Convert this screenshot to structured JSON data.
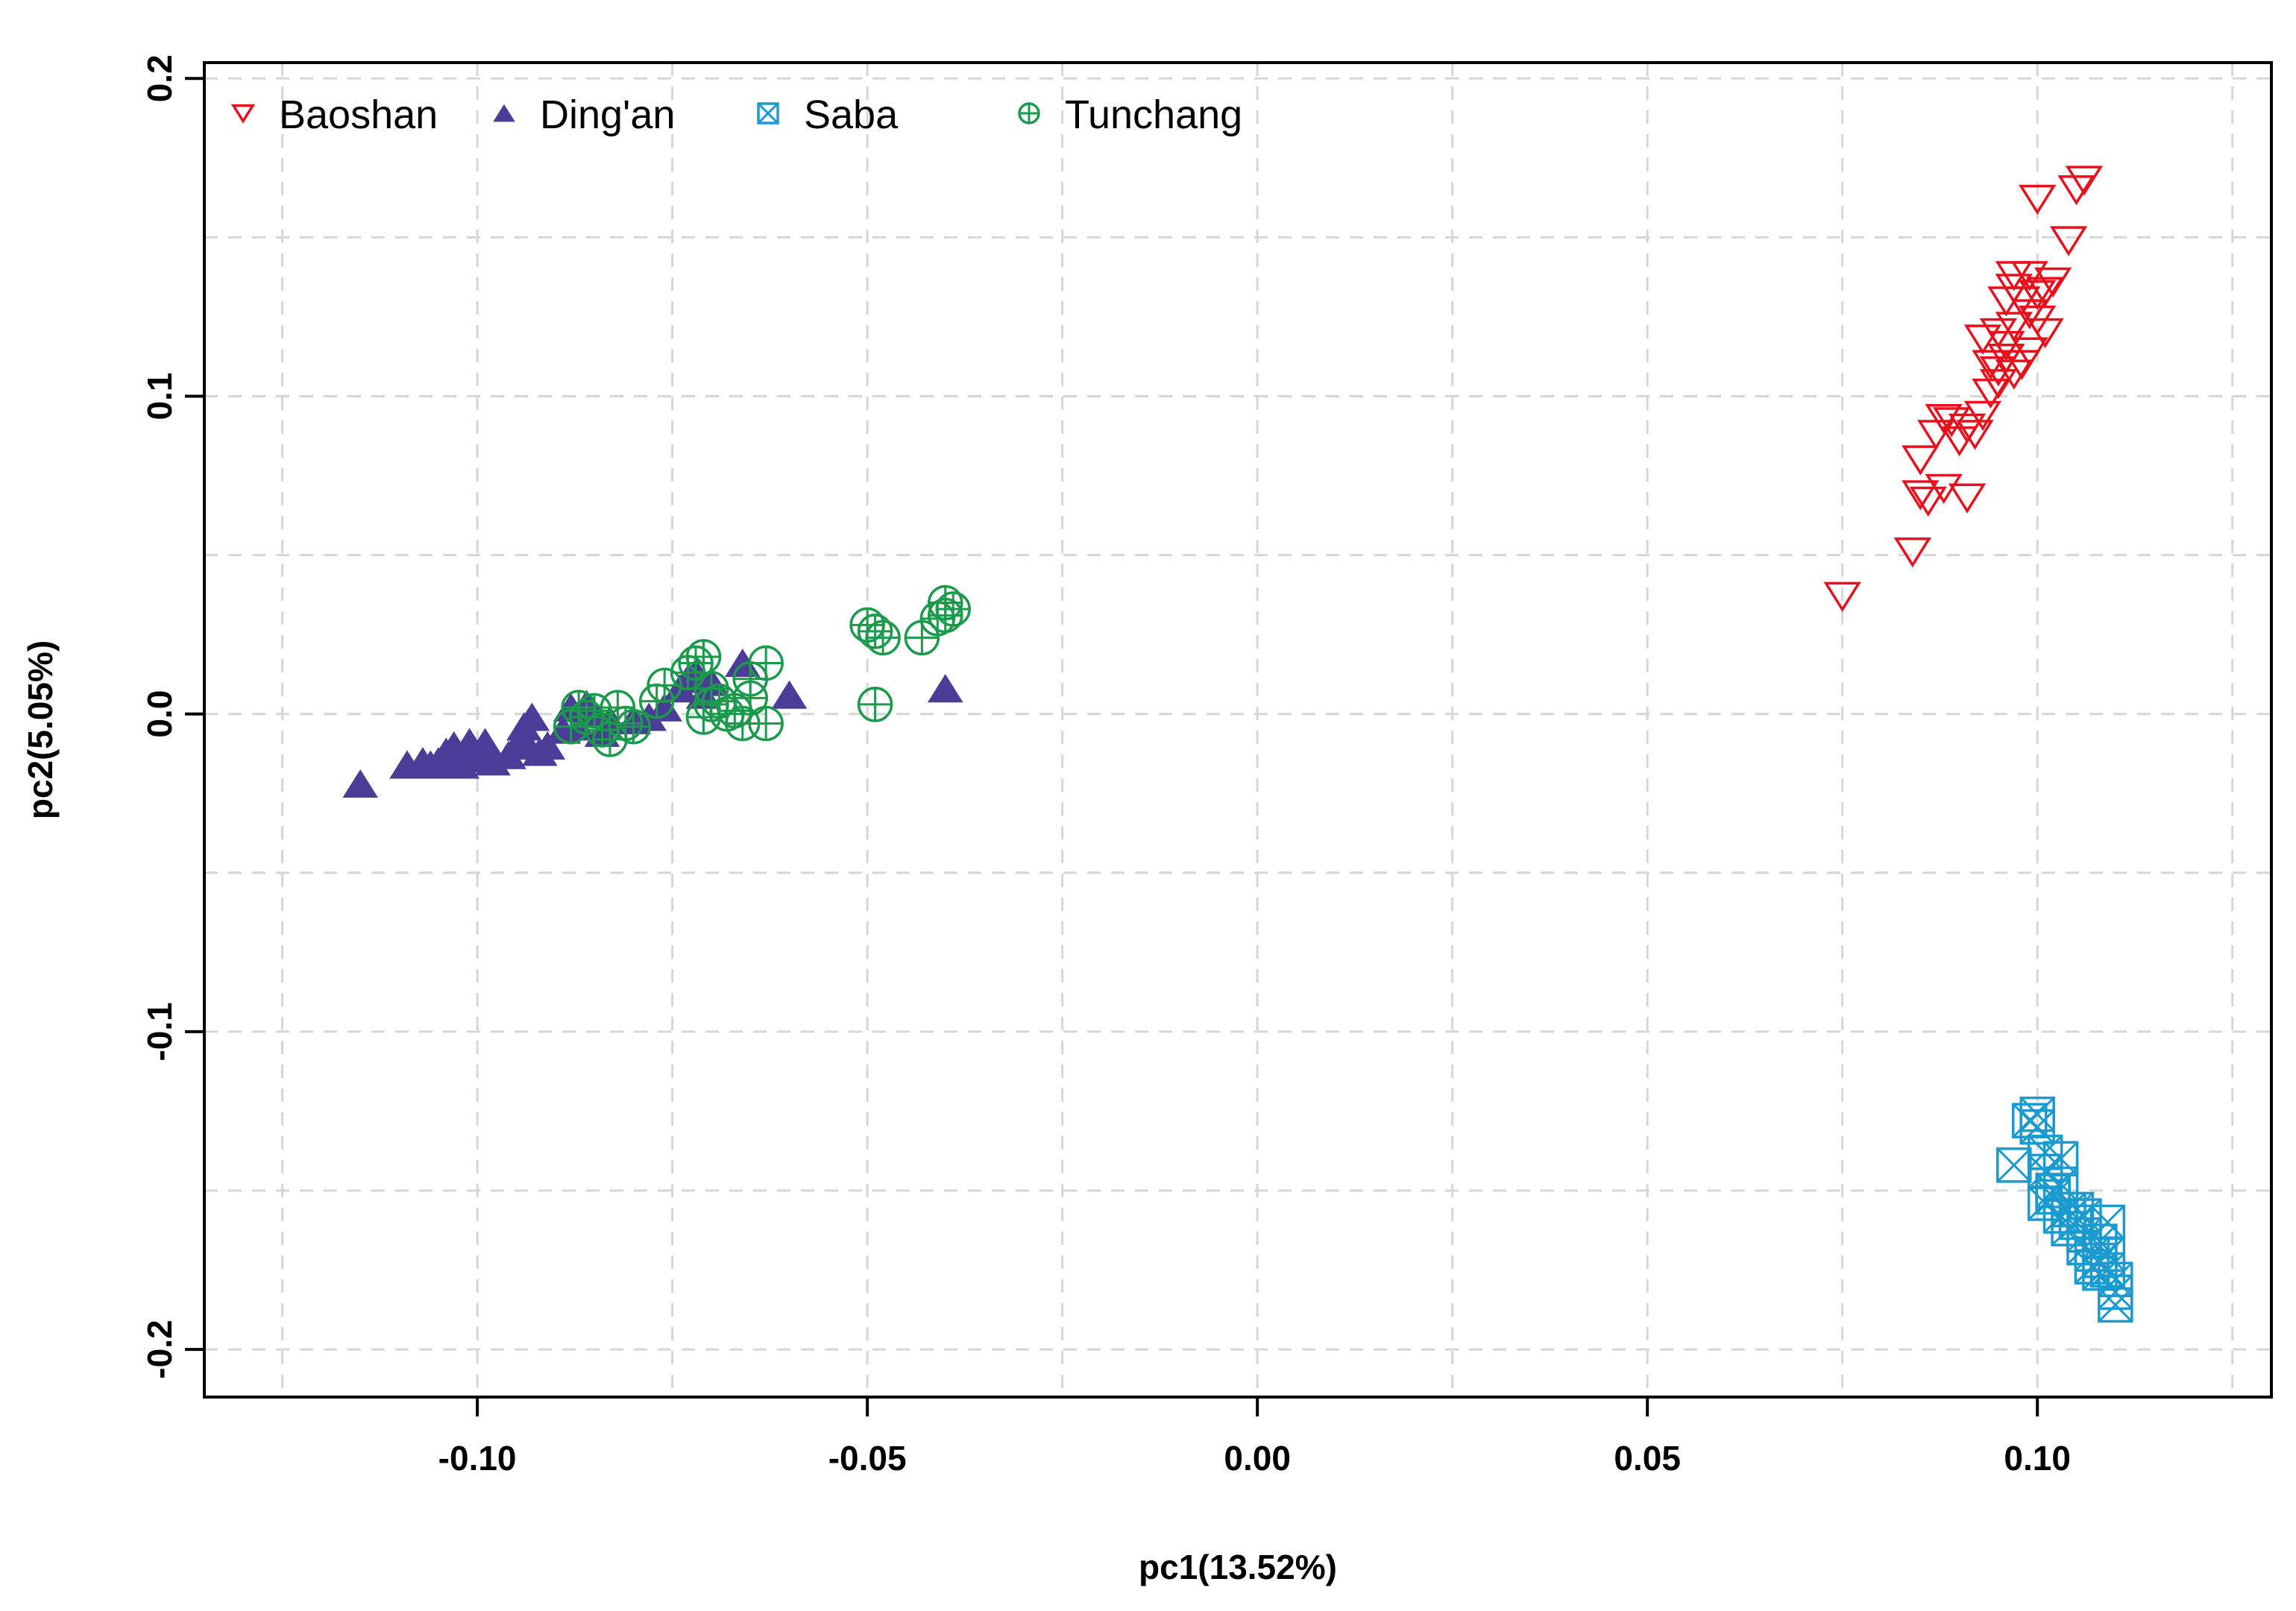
{
  "chart_data": {
    "type": "scatter",
    "title": "",
    "xlabel": "pc1(13.52%)",
    "ylabel": "pc2(5.05%)",
    "xlim": [
      -0.135,
      0.13
    ],
    "ylim": [
      -0.215,
      0.205
    ],
    "xticks": [
      -0.1,
      -0.05,
      0.0,
      0.05,
      0.1
    ],
    "xtick_labels": [
      "-0.10",
      "-0.05",
      "0.00",
      "0.05",
      "0.10"
    ],
    "yticks": [
      -0.2,
      -0.1,
      0.0,
      0.1,
      0.2
    ],
    "ytick_labels": [
      "-0.2",
      "-0.1",
      "0.0",
      "0.1",
      "0.2"
    ],
    "grid": true,
    "legend": {
      "position": "top-left",
      "orientation": "horizontal"
    },
    "series": [
      {
        "name": "Baoshan",
        "marker": "triangle-down-open",
        "color": "#e8101c",
        "points": [
          [
            0.075,
            0.037
          ],
          [
            0.084,
            0.051
          ],
          [
            0.085,
            0.069
          ],
          [
            0.086,
            0.067
          ],
          [
            0.088,
            0.071
          ],
          [
            0.085,
            0.08
          ],
          [
            0.087,
            0.088
          ],
          [
            0.089,
            0.092
          ],
          [
            0.09,
            0.086
          ],
          [
            0.091,
            0.09
          ],
          [
            0.092,
            0.088
          ],
          [
            0.088,
            0.093
          ],
          [
            0.091,
            0.068
          ],
          [
            0.093,
            0.094
          ],
          [
            0.094,
            0.101
          ],
          [
            0.095,
            0.104
          ],
          [
            0.095,
            0.108
          ],
          [
            0.096,
            0.112
          ],
          [
            0.094,
            0.11
          ],
          [
            0.093,
            0.118
          ],
          [
            0.095,
            0.12
          ],
          [
            0.096,
            0.116
          ],
          [
            0.097,
            0.122
          ],
          [
            0.098,
            0.11
          ],
          [
            0.097,
            0.107
          ],
          [
            0.099,
            0.114
          ],
          [
            0.099,
            0.126
          ],
          [
            0.098,
            0.13
          ],
          [
            0.097,
            0.134
          ],
          [
            0.096,
            0.13
          ],
          [
            0.1,
            0.132
          ],
          [
            0.101,
            0.12
          ],
          [
            0.1,
            0.124
          ],
          [
            0.097,
            0.138
          ],
          [
            0.099,
            0.138
          ],
          [
            0.102,
            0.136
          ],
          [
            0.101,
            0.133
          ],
          [
            0.1,
            0.162
          ],
          [
            0.104,
            0.149
          ],
          [
            0.105,
            0.165
          ],
          [
            0.106,
            0.168
          ]
        ]
      },
      {
        "name": "Ding'an",
        "marker": "triangle-up-filled",
        "color": "#4b3c97",
        "points": [
          [
            -0.115,
            -0.022
          ],
          [
            -0.109,
            -0.016
          ],
          [
            -0.107,
            -0.015
          ],
          [
            -0.106,
            -0.016
          ],
          [
            -0.105,
            -0.015
          ],
          [
            -0.104,
            -0.012
          ],
          [
            -0.103,
            -0.014
          ],
          [
            -0.103,
            -0.01
          ],
          [
            -0.102,
            -0.016
          ],
          [
            -0.101,
            -0.012
          ],
          [
            -0.101,
            -0.009
          ],
          [
            -0.1,
            -0.014
          ],
          [
            -0.099,
            -0.012
          ],
          [
            -0.099,
            -0.009
          ],
          [
            -0.098,
            -0.015
          ],
          [
            -0.096,
            -0.013
          ],
          [
            -0.095,
            -0.01
          ],
          [
            -0.094,
            -0.008
          ],
          [
            -0.094,
            -0.004
          ],
          [
            -0.093,
            -0.001
          ],
          [
            -0.092,
            -0.012
          ],
          [
            -0.091,
            -0.01
          ],
          [
            -0.089,
            -0.005
          ],
          [
            -0.088,
            0.002
          ],
          [
            -0.087,
            -0.004
          ],
          [
            -0.086,
            0.003
          ],
          [
            -0.085,
            0.0
          ],
          [
            -0.084,
            -0.006
          ],
          [
            -0.083,
            -0.002
          ],
          [
            -0.08,
            -0.002
          ],
          [
            -0.078,
            -0.001
          ],
          [
            -0.076,
            0.002
          ],
          [
            -0.074,
            0.008
          ],
          [
            -0.073,
            0.011
          ],
          [
            -0.072,
            0.013
          ],
          [
            -0.071,
            0.006
          ],
          [
            -0.07,
            0.01
          ],
          [
            -0.066,
            0.016
          ],
          [
            -0.06,
            0.006
          ],
          [
            -0.04,
            0.008
          ]
        ]
      },
      {
        "name": "Saba",
        "marker": "square-x-open",
        "color": "#1b9ad0",
        "points": [
          [
            0.097,
            -0.142
          ],
          [
            0.099,
            -0.128
          ],
          [
            0.1,
            -0.13
          ],
          [
            0.1,
            -0.126
          ],
          [
            0.101,
            -0.138
          ],
          [
            0.101,
            -0.144
          ],
          [
            0.102,
            -0.15
          ],
          [
            0.101,
            -0.154
          ],
          [
            0.102,
            -0.152
          ],
          [
            0.103,
            -0.14
          ],
          [
            0.103,
            -0.148
          ],
          [
            0.103,
            -0.158
          ],
          [
            0.104,
            -0.156
          ],
          [
            0.104,
            -0.162
          ],
          [
            0.105,
            -0.16
          ],
          [
            0.105,
            -0.156
          ],
          [
            0.106,
            -0.158
          ],
          [
            0.106,
            -0.164
          ],
          [
            0.106,
            -0.168
          ],
          [
            0.107,
            -0.17
          ],
          [
            0.107,
            -0.174
          ],
          [
            0.108,
            -0.166
          ],
          [
            0.108,
            -0.172
          ],
          [
            0.109,
            -0.17
          ],
          [
            0.109,
            -0.16
          ],
          [
            0.109,
            -0.175
          ],
          [
            0.11,
            -0.178
          ],
          [
            0.11,
            -0.182
          ],
          [
            0.11,
            -0.186
          ],
          [
            0.108,
            -0.176
          ]
        ]
      },
      {
        "name": "Tunchang",
        "marker": "circle-plus-open",
        "color": "#1a9a4a",
        "points": [
          [
            -0.088,
            -0.004
          ],
          [
            -0.087,
            0.002
          ],
          [
            -0.086,
            -0.001
          ],
          [
            -0.085,
            0.001
          ],
          [
            -0.084,
            -0.005
          ],
          [
            -0.083,
            -0.008
          ],
          [
            -0.082,
            0.002
          ],
          [
            -0.081,
            -0.003
          ],
          [
            -0.08,
            -0.004
          ],
          [
            -0.077,
            0.004
          ],
          [
            -0.076,
            0.009
          ],
          [
            -0.073,
            0.013
          ],
          [
            -0.072,
            0.016
          ],
          [
            -0.071,
            0.018
          ],
          [
            -0.07,
            0.008
          ],
          [
            -0.07,
            0.003
          ],
          [
            -0.071,
            -0.001
          ],
          [
            -0.069,
            0.004
          ],
          [
            -0.068,
            0.0
          ],
          [
            -0.067,
            0.001
          ],
          [
            -0.066,
            -0.003
          ],
          [
            -0.065,
            0.011
          ],
          [
            -0.065,
            0.005
          ],
          [
            -0.063,
            0.016
          ],
          [
            -0.063,
            -0.003
          ],
          [
            -0.05,
            0.028
          ],
          [
            -0.049,
            0.026
          ],
          [
            -0.048,
            0.024
          ],
          [
            -0.049,
            0.003
          ],
          [
            -0.043,
            0.024
          ],
          [
            -0.041,
            0.03
          ],
          [
            -0.04,
            0.035
          ],
          [
            -0.04,
            0.031
          ],
          [
            -0.039,
            0.033
          ]
        ]
      }
    ]
  }
}
